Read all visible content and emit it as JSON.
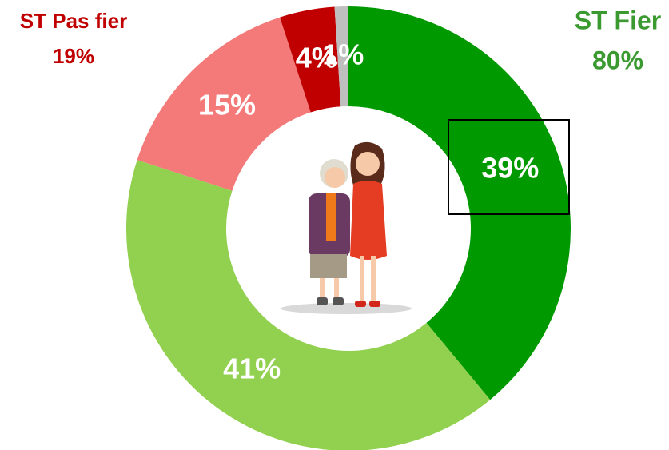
{
  "chart_data": {
    "type": "donut",
    "series": [
      {
        "values": [
          39,
          41,
          15,
          4,
          1
        ],
        "value_labels": [
          "39%",
          "41%",
          "15%",
          "4%",
          "1%"
        ],
        "colors": [
          "#009900",
          "#92d050",
          "#f47a7a",
          "#c00000",
          "#bfbfbf"
        ]
      }
    ],
    "groups": [
      {
        "name": "ST Pas fier",
        "value": 19,
        "value_label": "19%",
        "color": "#c00000"
      },
      {
        "name": "ST Fier",
        "value": 80,
        "value_label": "80%",
        "color": "#3a9a30"
      }
    ]
  }
}
